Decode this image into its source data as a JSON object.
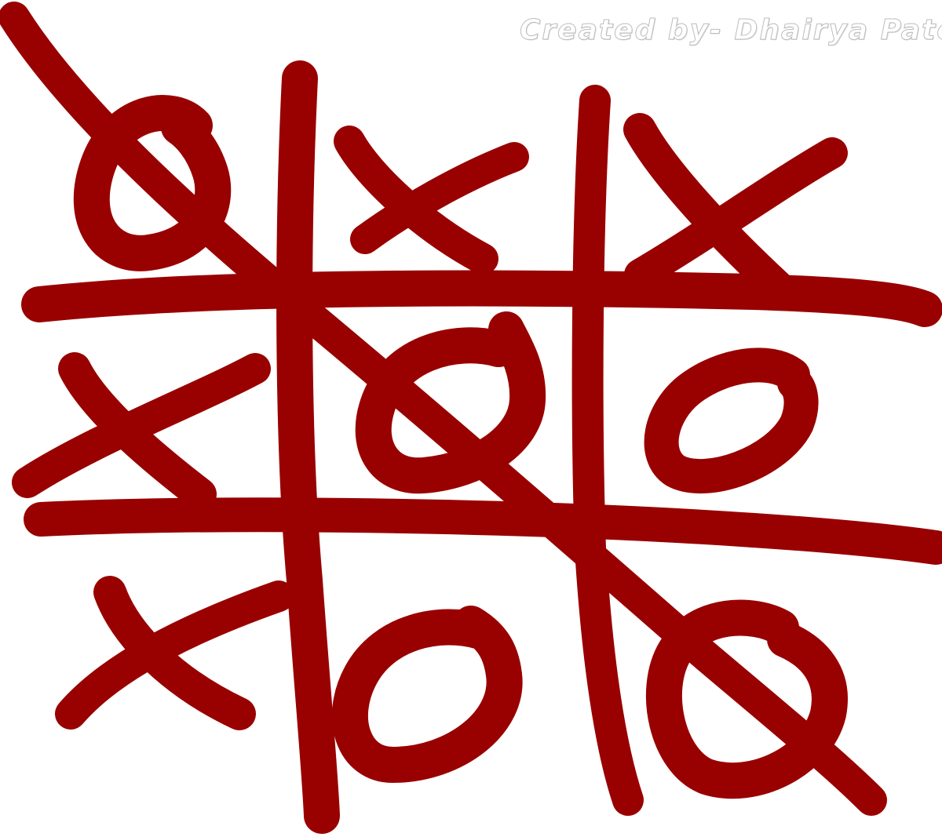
{
  "credit": "Created by- Dhairya Patel",
  "colors": {
    "ink": "#990000",
    "background": "#ffffff",
    "credit_outline": "#bdbdbd"
  },
  "board": {
    "rows": [
      [
        "O",
        "X",
        "X"
      ],
      [
        "X",
        "O",
        "O"
      ],
      [
        "X",
        "O",
        "O"
      ]
    ],
    "winning_line": "diagonal-top-left-to-bottom-right"
  }
}
